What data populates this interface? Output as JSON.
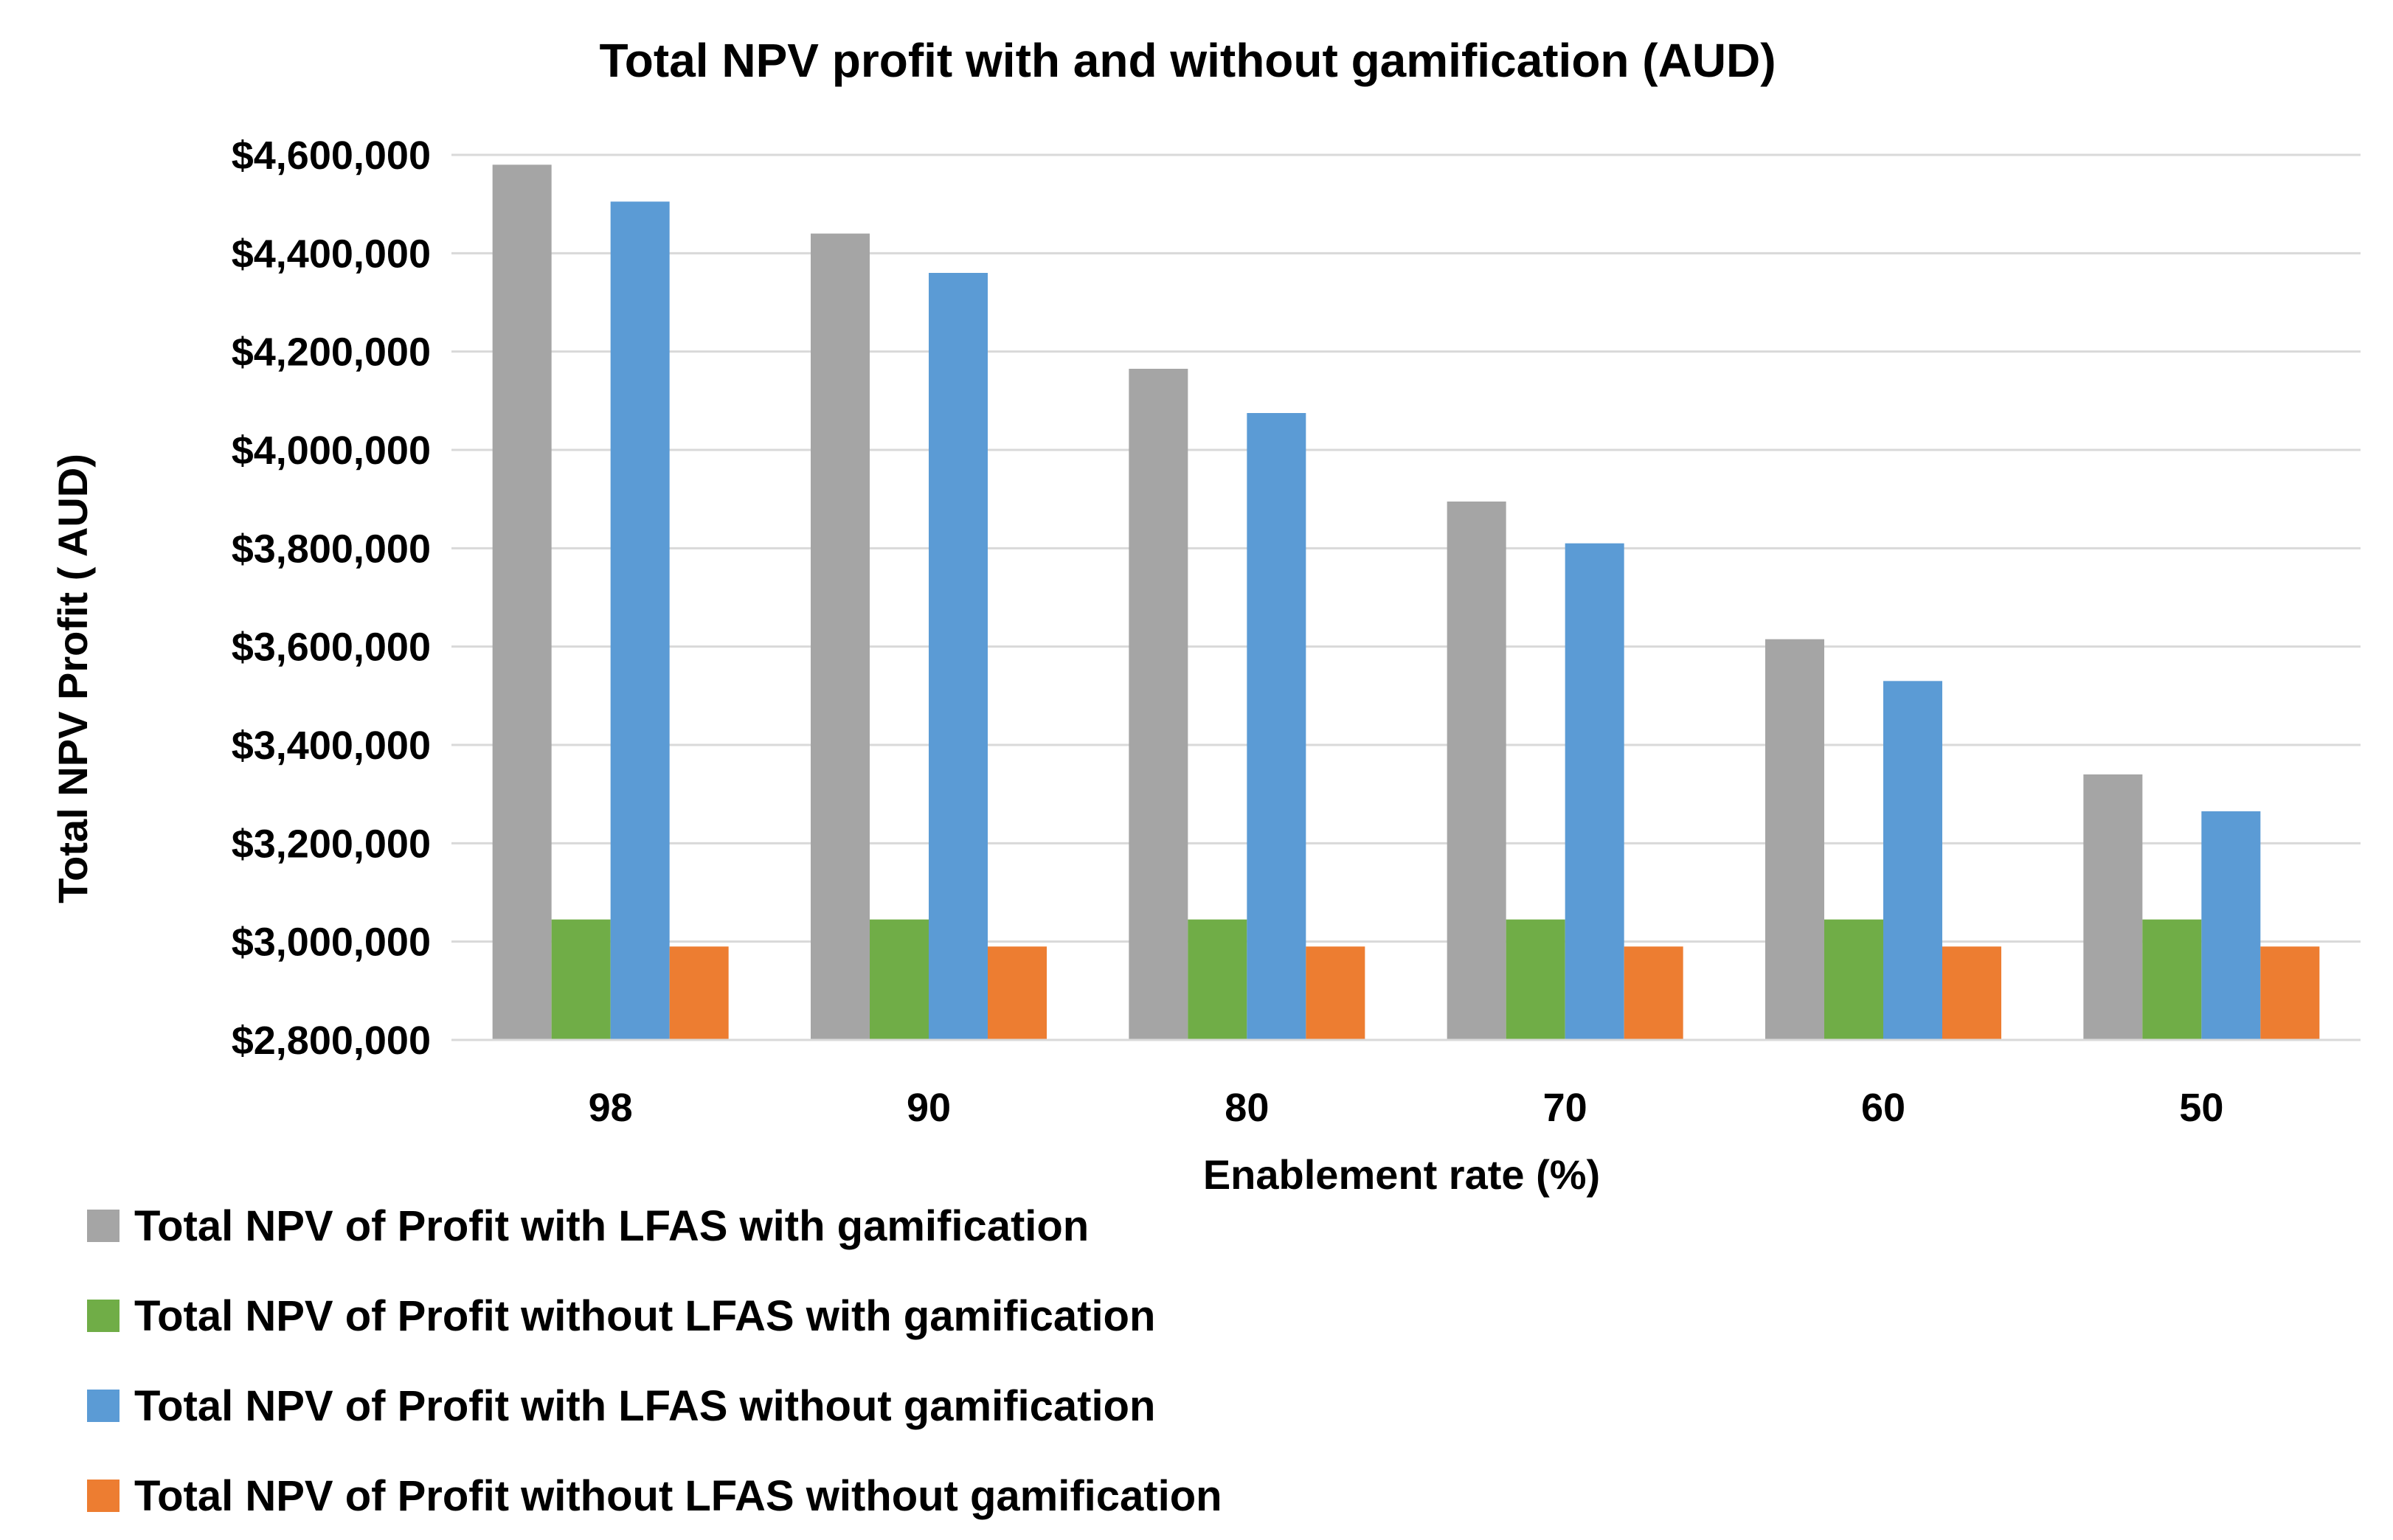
{
  "chart_data": {
    "type": "bar",
    "title": "Total NPV profit with and without gamification (AUD)",
    "xlabel": "Enablement rate (%)",
    "ylabel": "Total NPV Profit ( AUD)",
    "categories": [
      "98",
      "90",
      "80",
      "70",
      "60",
      "50"
    ],
    "ylim": [
      2800000,
      4600000
    ],
    "yticks": [
      2800000,
      3000000,
      3200000,
      3400000,
      3600000,
      3800000,
      4000000,
      4200000,
      4400000,
      4600000
    ],
    "ytick_labels": [
      "$2,800,000",
      "$3,000,000",
      "$3,200,000",
      "$3,400,000",
      "$3,600,000",
      "$3,800,000",
      "$4,000,000",
      "$4,200,000",
      "$4,400,000",
      "$4,600,000"
    ],
    "grid": true,
    "legend_position": "bottom-left",
    "series": [
      {
        "name": "Total NPV of Profit with LFAS with gamification",
        "color": "#a5a5a5",
        "values": [
          4580000,
          4440000,
          4165000,
          3895000,
          3615000,
          3340000
        ]
      },
      {
        "name": "Total NPV of Profit without LFAS with gamification",
        "color": "#70ad47",
        "values": [
          3045000,
          3045000,
          3045000,
          3045000,
          3045000,
          3045000
        ]
      },
      {
        "name": "Total NPV of Profit with LFAS without gamification",
        "color": "#5b9bd5",
        "values": [
          4505000,
          4360000,
          4075000,
          3810000,
          3530000,
          3265000
        ]
      },
      {
        "name": "Total NPV of Profit without LFAS without gamification",
        "color": "#ed7d31",
        "values": [
          2990000,
          2990000,
          2990000,
          2990000,
          2990000,
          2990000
        ]
      }
    ]
  }
}
